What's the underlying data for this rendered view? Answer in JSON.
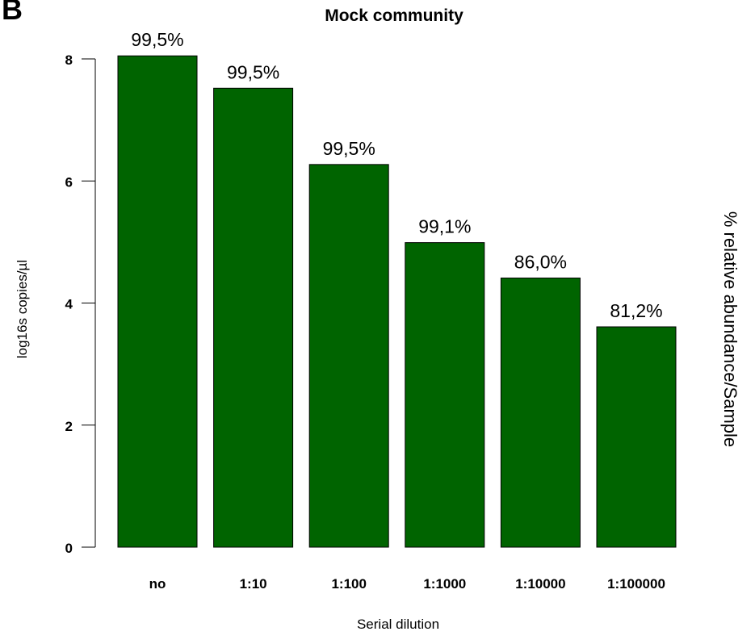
{
  "panel_label": "B",
  "chart_data": {
    "type": "bar",
    "title": "Mock community",
    "xlabel": "Serial dilution",
    "ylabel": "log16s copies/µl",
    "ylabel_right": "% relative abundance/Sample",
    "categories": [
      "no",
      "1:10",
      "1:100",
      "1:1000",
      "1:10000",
      "1:100000"
    ],
    "values": [
      8.05,
      7.52,
      6.27,
      4.99,
      4.41,
      3.61
    ],
    "data_labels": [
      "99,5%",
      "99,5%",
      "99,5%",
      "99,1%",
      "86,0%",
      "81,2%"
    ],
    "ylim": [
      0,
      8
    ],
    "yticks": [
      0,
      2,
      4,
      6,
      8
    ],
    "bar_color": "#006400",
    "bar_edge_color": "#000000",
    "grid": false,
    "legend": "none"
  }
}
